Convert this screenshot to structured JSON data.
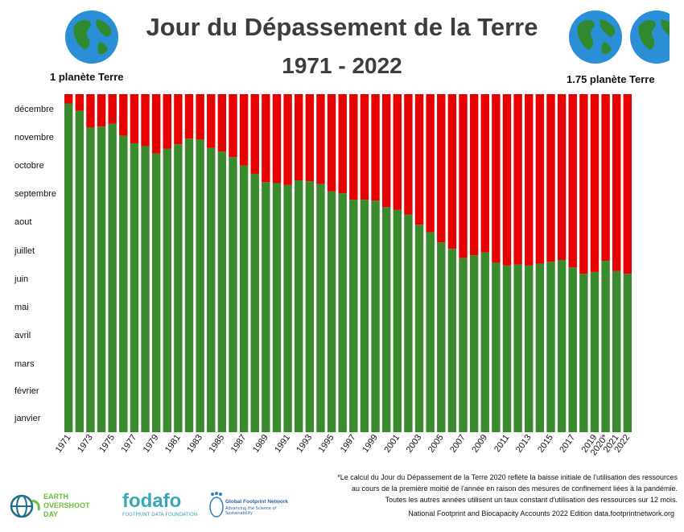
{
  "header": {
    "title": "Jour du Dépassement de la Terre",
    "subtitle": "1971 - 2022",
    "left_label": "1 planète Terre",
    "right_label": "1.75 planète Terre"
  },
  "colors": {
    "green": "#3a8a2e",
    "red": "#e60000",
    "title": "#3d3d3d",
    "ocean": "#2a8fd6",
    "land": "#2f8a2f"
  },
  "chart_data": {
    "type": "bar",
    "stacked": true,
    "x": [
      "1971",
      "1972",
      "1973",
      "1974",
      "1975",
      "1976",
      "1977",
      "1978",
      "1979",
      "1980",
      "1981",
      "1982",
      "1983",
      "1984",
      "1985",
      "1986",
      "1987",
      "1988",
      "1989",
      "1990",
      "1991",
      "1992",
      "1993",
      "1994",
      "1995",
      "1996",
      "1997",
      "1998",
      "1999",
      "2000",
      "2001",
      "2002",
      "2003",
      "2004",
      "2005",
      "2006",
      "2007",
      "2008",
      "2009",
      "2010",
      "2011",
      "2012",
      "2013",
      "2014",
      "2015",
      "2016",
      "2017",
      "2018",
      "2019",
      "2020*",
      "2021",
      "2022"
    ],
    "x_tick_labels_shown": [
      "1971",
      "1973",
      "1975",
      "1977",
      "1979",
      "1981",
      "1983",
      "1985",
      "1987",
      "1989",
      "1991",
      "1993",
      "1995",
      "1997",
      "1999",
      "2001",
      "2003",
      "2005",
      "2007",
      "2009",
      "2011",
      "2013",
      "2015",
      "2017",
      "2019",
      "2020*",
      "2021",
      "2022"
    ],
    "series": [
      {
        "values": [
          355,
          347,
          329,
          330,
          333,
          320,
          312,
          309,
          301,
          306,
          311,
          317,
          316,
          307,
          303,
          297,
          288,
          279,
          270,
          269,
          267,
          272,
          271,
          268,
          260,
          258,
          251,
          251,
          250,
          243,
          240,
          235,
          224,
          216,
          205,
          198,
          188,
          191,
          194,
          183,
          180,
          181,
          180,
          182,
          184,
          186,
          178,
          171,
          173,
          185,
          174,
          171
        ]
      },
      {
        "values": [
          10,
          18,
          36,
          35,
          32,
          45,
          53,
          56,
          64,
          59,
          54,
          48,
          49,
          58,
          62,
          68,
          77,
          86,
          95,
          96,
          98,
          93,
          94,
          97,
          105,
          107,
          114,
          114,
          115,
          122,
          125,
          130,
          141,
          149,
          160,
          167,
          177,
          174,
          171,
          182,
          185,
          184,
          185,
          183,
          181,
          179,
          187,
          194,
          192,
          180,
          191,
          194
        ]
      }
    ],
    "y_tick_labels": [
      "janvier",
      "février",
      "mars",
      "avril",
      "mai",
      "juin",
      "juillet",
      "aout",
      "septembre",
      "octobre",
      "novembre",
      "décembre"
    ],
    "ylim": [
      0,
      365
    ]
  },
  "footnote": [
    "*Le calcul du Jour du Dépassement de la Terre 2020 reflète la baisse initiale de l'utilisation des ressources",
    "au cours de la première moitié de l'année en raison des mesures de confinement liées à la pandémie.",
    "Toutes les autres années utilisent un taux constant d'utilisation des ressources sur 12 mois."
  ],
  "source": "National Footprint and Biocapacity Accounts 2022  Edition data.footprintnetwork.org",
  "logos": {
    "eod": [
      "EARTH",
      "OVERSHOOT",
      "DAY"
    ],
    "fodafo_name": "fodafo",
    "fodafo_sub": "FOOTPRINT DATA FOUNDATION",
    "gfn_name": "Global Footprint Network",
    "gfn_sub": "Advancing the Science of Sustainability"
  }
}
